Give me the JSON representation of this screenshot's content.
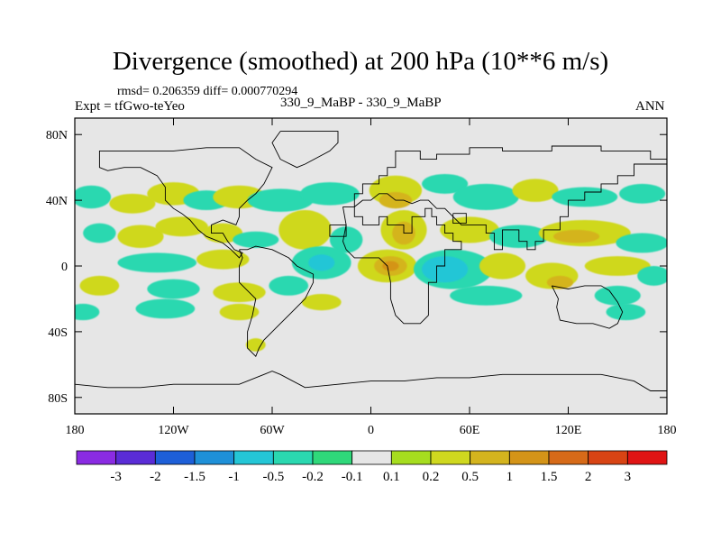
{
  "title": "Divergence (smoothed) at 200 hPa (10**6 m/s)",
  "stats": "rmsd= 0.206359 diff= 0.000770294",
  "experiment": "Expt = tfGwo-teYeo",
  "case_label": "330_9_MaBP - 330_9_MaBP",
  "season": "ANN",
  "map": {
    "lon_range": [
      -180,
      180
    ],
    "lat_range": [
      -90,
      90
    ],
    "x_ticks": [
      {
        "value": -180,
        "label": "180"
      },
      {
        "value": -120,
        "label": "120W"
      },
      {
        "value": -60,
        "label": "60W"
      },
      {
        "value": 0,
        "label": "0"
      },
      {
        "value": 60,
        "label": "60E"
      },
      {
        "value": 120,
        "label": "120E"
      },
      {
        "value": 180,
        "label": "180"
      }
    ],
    "y_ticks": [
      {
        "value": 80,
        "label": "80N"
      },
      {
        "value": 40,
        "label": "40N"
      },
      {
        "value": 0,
        "label": "0"
      },
      {
        "value": -40,
        "label": "40S"
      },
      {
        "value": -80,
        "label": "80S"
      }
    ],
    "background_color": "#e6e6e6",
    "field_blobs": [
      {
        "lon": -170,
        "lat": 42,
        "rlon": 12,
        "rlat": 7,
        "level": -0.3
      },
      {
        "lon": -145,
        "lat": 38,
        "rlon": 14,
        "rlat": 6,
        "level": 0.3
      },
      {
        "lon": -120,
        "lat": 44,
        "rlon": 16,
        "rlat": 7,
        "level": 0.3
      },
      {
        "lon": -100,
        "lat": 40,
        "rlon": 14,
        "rlat": 6,
        "level": -0.3
      },
      {
        "lon": -80,
        "lat": 42,
        "rlon": 16,
        "rlat": 7,
        "level": 0.3
      },
      {
        "lon": -55,
        "lat": 40,
        "rlon": 20,
        "rlat": 7,
        "level": -0.3
      },
      {
        "lon": -25,
        "lat": 44,
        "rlon": 18,
        "rlat": 7,
        "level": -0.3
      },
      {
        "lon": 15,
        "lat": 46,
        "rlon": 16,
        "rlat": 9,
        "level": 0.3
      },
      {
        "lon": 15,
        "lat": 40,
        "rlon": 10,
        "rlat": 5,
        "level": 0.7
      },
      {
        "lon": 45,
        "lat": 50,
        "rlon": 14,
        "rlat": 6,
        "level": -0.3
      },
      {
        "lon": 70,
        "lat": 42,
        "rlon": 20,
        "rlat": 8,
        "level": -0.3
      },
      {
        "lon": 100,
        "lat": 46,
        "rlon": 14,
        "rlat": 7,
        "level": 0.3
      },
      {
        "lon": 130,
        "lat": 42,
        "rlon": 20,
        "rlat": 6,
        "level": -0.3
      },
      {
        "lon": 165,
        "lat": 44,
        "rlon": 14,
        "rlat": 6,
        "level": -0.3
      },
      {
        "lon": -165,
        "lat": 20,
        "rlon": 10,
        "rlat": 6,
        "level": -0.3
      },
      {
        "lon": -140,
        "lat": 18,
        "rlon": 14,
        "rlat": 7,
        "level": 0.3
      },
      {
        "lon": -115,
        "lat": 24,
        "rlon": 16,
        "rlat": 6,
        "level": 0.3
      },
      {
        "lon": -90,
        "lat": 20,
        "rlon": 12,
        "rlat": 6,
        "level": 0.3
      },
      {
        "lon": -70,
        "lat": 16,
        "rlon": 14,
        "rlat": 5,
        "level": -0.3
      },
      {
        "lon": -40,
        "lat": 22,
        "rlon": 16,
        "rlat": 12,
        "level": 0.3
      },
      {
        "lon": -15,
        "lat": 16,
        "rlon": 10,
        "rlat": 8,
        "level": -0.3
      },
      {
        "lon": 20,
        "lat": 22,
        "rlon": 14,
        "rlat": 12,
        "level": 0.3
      },
      {
        "lon": 20,
        "lat": 20,
        "rlon": 7,
        "rlat": 7,
        "level": 0.7
      },
      {
        "lon": 60,
        "lat": 22,
        "rlon": 18,
        "rlat": 8,
        "level": 0.3
      },
      {
        "lon": 90,
        "lat": 18,
        "rlon": 18,
        "rlat": 7,
        "level": -0.3
      },
      {
        "lon": 130,
        "lat": 20,
        "rlon": 28,
        "rlat": 8,
        "level": 0.3
      },
      {
        "lon": 125,
        "lat": 18,
        "rlon": 14,
        "rlat": 4,
        "level": 0.7
      },
      {
        "lon": 165,
        "lat": 14,
        "rlon": 16,
        "rlat": 6,
        "level": -0.3
      },
      {
        "lon": -130,
        "lat": 2,
        "rlon": 24,
        "rlat": 6,
        "level": -0.3
      },
      {
        "lon": -90,
        "lat": 4,
        "rlon": 16,
        "rlat": 6,
        "level": 0.3
      },
      {
        "lon": -30,
        "lat": 2,
        "rlon": 18,
        "rlat": 10,
        "level": -0.3
      },
      {
        "lon": -30,
        "lat": 2,
        "rlon": 8,
        "rlat": 5,
        "level": -0.7
      },
      {
        "lon": 10,
        "lat": 0,
        "rlon": 18,
        "rlat": 10,
        "level": 0.3
      },
      {
        "lon": 12,
        "lat": 0,
        "rlon": 10,
        "rlat": 6,
        "level": 0.7
      },
      {
        "lon": 12,
        "lat": 0,
        "rlon": 5,
        "rlat": 3,
        "level": 1.2
      },
      {
        "lon": 50,
        "lat": -2,
        "rlon": 24,
        "rlat": 12,
        "level": -0.3
      },
      {
        "lon": 45,
        "lat": -2,
        "rlon": 14,
        "rlat": 8,
        "level": -0.7
      },
      {
        "lon": 80,
        "lat": 0,
        "rlon": 14,
        "rlat": 8,
        "level": 0.3
      },
      {
        "lon": 110,
        "lat": -6,
        "rlon": 16,
        "rlat": 8,
        "level": 0.3
      },
      {
        "lon": 115,
        "lat": -10,
        "rlon": 8,
        "rlat": 4,
        "level": 0.7
      },
      {
        "lon": 150,
        "lat": 0,
        "rlon": 20,
        "rlat": 6,
        "level": 0.3
      },
      {
        "lon": 172,
        "lat": -6,
        "rlon": 10,
        "rlat": 6,
        "level": -0.3
      },
      {
        "lon": -165,
        "lat": -12,
        "rlon": 12,
        "rlat": 6,
        "level": 0.3
      },
      {
        "lon": -120,
        "lat": -14,
        "rlon": 16,
        "rlat": 6,
        "level": -0.3
      },
      {
        "lon": -80,
        "lat": -16,
        "rlon": 16,
        "rlat": 6,
        "level": 0.3
      },
      {
        "lon": -50,
        "lat": -12,
        "rlon": 12,
        "rlat": 6,
        "level": -0.3
      },
      {
        "lon": 70,
        "lat": -18,
        "rlon": 22,
        "rlat": 6,
        "level": -0.3
      },
      {
        "lon": 150,
        "lat": -18,
        "rlon": 14,
        "rlat": 6,
        "level": -0.3
      },
      {
        "lon": -175,
        "lat": -28,
        "rlon": 10,
        "rlat": 5,
        "level": -0.3
      },
      {
        "lon": -125,
        "lat": -26,
        "rlon": 18,
        "rlat": 6,
        "level": -0.3
      },
      {
        "lon": -80,
        "lat": -28,
        "rlon": 12,
        "rlat": 5,
        "level": 0.3
      },
      {
        "lon": -30,
        "lat": -22,
        "rlon": 12,
        "rlat": 5,
        "level": 0.3
      },
      {
        "lon": 155,
        "lat": -28,
        "rlon": 12,
        "rlat": 5,
        "level": -0.3
      },
      {
        "lon": -70,
        "lat": -48,
        "rlon": 6,
        "rlat": 4,
        "level": 0.3
      }
    ],
    "outlines": [
      [
        [
          -17,
          36
        ],
        [
          -10,
          36
        ],
        [
          -10,
          30
        ],
        [
          -5,
          30
        ],
        [
          -5,
          25
        ],
        [
          5,
          25
        ],
        [
          5,
          30
        ],
        [
          10,
          30
        ],
        [
          10,
          25
        ],
        [
          20,
          25
        ],
        [
          20,
          20
        ],
        [
          25,
          20
        ],
        [
          25,
          30
        ],
        [
          33,
          30
        ],
        [
          33,
          35
        ],
        [
          37,
          35
        ],
        [
          37,
          30
        ],
        [
          40,
          30
        ],
        [
          40,
          25
        ],
        [
          45,
          25
        ],
        [
          45,
          20
        ],
        [
          50,
          20
        ],
        [
          50,
          15
        ],
        [
          55,
          15
        ],
        [
          55,
          10
        ],
        [
          45,
          10
        ],
        [
          45,
          0
        ],
        [
          40,
          0
        ],
        [
          40,
          -10
        ],
        [
          35,
          -10
        ],
        [
          35,
          -20
        ],
        [
          35,
          -30
        ],
        [
          30,
          -35
        ],
        [
          20,
          -35
        ],
        [
          15,
          -30
        ],
        [
          12,
          -20
        ],
        [
          12,
          -10
        ],
        [
          10,
          0
        ],
        [
          5,
          5
        ],
        [
          -5,
          5
        ],
        [
          -10,
          5
        ],
        [
          -15,
          10
        ],
        [
          -17,
          15
        ],
        [
          -15,
          25
        ],
        [
          -17,
          36
        ]
      ],
      [
        [
          -10,
          36
        ],
        [
          -10,
          44
        ],
        [
          -5,
          44
        ],
        [
          -5,
          50
        ],
        [
          5,
          50
        ],
        [
          5,
          55
        ],
        [
          10,
          55
        ],
        [
          10,
          60
        ],
        [
          15,
          60
        ],
        [
          15,
          70
        ],
        [
          30,
          70
        ],
        [
          30,
          65
        ],
        [
          40,
          65
        ],
        [
          40,
          68
        ],
        [
          60,
          68
        ],
        [
          60,
          72
        ],
        [
          80,
          72
        ],
        [
          80,
          70
        ],
        [
          110,
          70
        ],
        [
          110,
          73
        ],
        [
          140,
          73
        ],
        [
          140,
          70
        ],
        [
          170,
          70
        ],
        [
          170,
          65
        ],
        [
          180,
          65
        ],
        [
          180,
          62
        ],
        [
          160,
          62
        ],
        [
          160,
          55
        ],
        [
          150,
          55
        ],
        [
          150,
          50
        ],
        [
          140,
          50
        ],
        [
          140,
          45
        ],
        [
          130,
          45
        ],
        [
          130,
          40
        ],
        [
          120,
          40
        ],
        [
          120,
          30
        ],
        [
          115,
          30
        ],
        [
          115,
          22
        ],
        [
          105,
          22
        ],
        [
          105,
          15
        ],
        [
          100,
          15
        ],
        [
          100,
          10
        ],
        [
          95,
          10
        ],
        [
          95,
          15
        ],
        [
          90,
          15
        ],
        [
          90,
          22
        ],
        [
          80,
          22
        ],
        [
          80,
          10
        ],
        [
          75,
          10
        ],
        [
          75,
          20
        ],
        [
          70,
          20
        ],
        [
          70,
          25
        ],
        [
          60,
          25
        ],
        [
          55,
          25
        ],
        [
          50,
          30
        ],
        [
          45,
          35
        ],
        [
          40,
          35
        ],
        [
          35,
          40
        ],
        [
          30,
          40
        ],
        [
          25,
          38
        ],
        [
          20,
          40
        ],
        [
          15,
          40
        ],
        [
          10,
          44
        ],
        [
          5,
          44
        ],
        [
          0,
          40
        ],
        [
          -5,
          40
        ],
        [
          -10,
          36
        ]
      ],
      [
        [
          -165,
          65
        ],
        [
          -165,
          70
        ],
        [
          -150,
          70
        ],
        [
          -140,
          70
        ],
        [
          -120,
          70
        ],
        [
          -100,
          72
        ],
        [
          -80,
          72
        ],
        [
          -70,
          65
        ],
        [
          -60,
          60
        ],
        [
          -65,
          50
        ],
        [
          -70,
          44
        ],
        [
          -75,
          40
        ],
        [
          -80,
          35
        ],
        [
          -80,
          30
        ],
        [
          -82,
          25
        ],
        [
          -90,
          28
        ],
        [
          -97,
          25
        ],
        [
          -97,
          20
        ],
        [
          -90,
          20
        ],
        [
          -87,
          15
        ],
        [
          -83,
          10
        ],
        [
          -78,
          8
        ],
        [
          -80,
          5
        ],
        [
          -85,
          10
        ],
        [
          -90,
          14
        ],
        [
          -100,
          18
        ],
        [
          -105,
          22
        ],
        [
          -110,
          28
        ],
        [
          -115,
          32
        ],
        [
          -120,
          35
        ],
        [
          -125,
          40
        ],
        [
          -125,
          48
        ],
        [
          -130,
          55
        ],
        [
          -140,
          60
        ],
        [
          -150,
          60
        ],
        [
          -160,
          58
        ],
        [
          -165,
          60
        ],
        [
          -165,
          65
        ]
      ],
      [
        [
          -80,
          10
        ],
        [
          -75,
          10
        ],
        [
          -70,
          12
        ],
        [
          -60,
          10
        ],
        [
          -50,
          5
        ],
        [
          -45,
          0
        ],
        [
          -35,
          -5
        ],
        [
          -35,
          -10
        ],
        [
          -40,
          -20
        ],
        [
          -45,
          -25
        ],
        [
          -50,
          -30
        ],
        [
          -55,
          -35
        ],
        [
          -60,
          -40
        ],
        [
          -65,
          -45
        ],
        [
          -68,
          -50
        ],
        [
          -70,
          -55
        ],
        [
          -75,
          -50
        ],
        [
          -75,
          -40
        ],
        [
          -72,
          -30
        ],
        [
          -70,
          -20
        ],
        [
          -75,
          -15
        ],
        [
          -80,
          -10
        ],
        [
          -80,
          -5
        ],
        [
          -80,
          0
        ],
        [
          -78,
          5
        ],
        [
          -80,
          10
        ]
      ],
      [
        [
          -55,
          82
        ],
        [
          -20,
          82
        ],
        [
          -20,
          75
        ],
        [
          -25,
          70
        ],
        [
          -40,
          62
        ],
        [
          -45,
          60
        ],
        [
          -55,
          65
        ],
        [
          -60,
          75
        ],
        [
          -55,
          82
        ]
      ],
      [
        [
          110,
          -12
        ],
        [
          120,
          -14
        ],
        [
          130,
          -12
        ],
        [
          140,
          -12
        ],
        [
          145,
          -15
        ],
        [
          150,
          -22
        ],
        [
          153,
          -28
        ],
        [
          150,
          -35
        ],
        [
          145,
          -38
        ],
        [
          135,
          -35
        ],
        [
          125,
          -35
        ],
        [
          115,
          -33
        ],
        [
          113,
          -25
        ],
        [
          114,
          -20
        ],
        [
          110,
          -12
        ]
      ],
      [
        [
          -180,
          -72
        ],
        [
          -160,
          -74
        ],
        [
          -140,
          -74
        ],
        [
          -120,
          -72
        ],
        [
          -100,
          -72
        ],
        [
          -80,
          -72
        ],
        [
          -65,
          -66
        ],
        [
          -60,
          -64
        ],
        [
          -55,
          -66
        ],
        [
          -40,
          -74
        ],
        [
          -20,
          -72
        ],
        [
          0,
          -70
        ],
        [
          20,
          -70
        ],
        [
          40,
          -68
        ],
        [
          60,
          -68
        ],
        [
          80,
          -66
        ],
        [
          100,
          -66
        ],
        [
          120,
          -66
        ],
        [
          140,
          -66
        ],
        [
          160,
          -70
        ],
        [
          170,
          -76
        ],
        [
          180,
          -76
        ]
      ],
      [
        [
          -25,
          25
        ],
        [
          -15,
          25
        ],
        [
          -15,
          18
        ],
        [
          -25,
          18
        ],
        [
          -25,
          25
        ]
      ],
      [
        [
          50,
          32
        ],
        [
          58,
          32
        ],
        [
          58,
          26
        ],
        [
          50,
          26
        ],
        [
          50,
          32
        ]
      ]
    ]
  },
  "colorbar": {
    "colors": [
      "#8a2be2",
      "#5a2cd6",
      "#1d5fd8",
      "#1e90d8",
      "#24c6d6",
      "#2ad8b0",
      "#2fd87a",
      "#e6e6e6",
      "#a6dd1f",
      "#cfd81f",
      "#d4b41e",
      "#d49418",
      "#d66a18",
      "#d84414",
      "#e01414"
    ],
    "levels": [
      "-3",
      "-2",
      "-1.5",
      "-1",
      "-0.5",
      "-0.2",
      "-0.1",
      "0.1",
      "0.2",
      "0.5",
      "1",
      "1.5",
      "2",
      "3"
    ]
  }
}
